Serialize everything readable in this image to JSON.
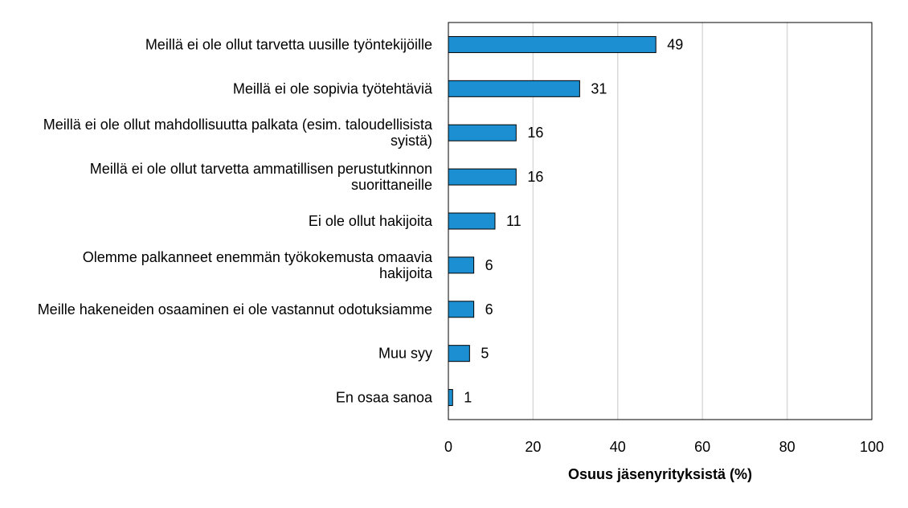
{
  "chart_data": {
    "type": "bar",
    "orientation": "horizontal",
    "categories": [
      "Meillä ei ole ollut tarvetta uusille työntekijöille",
      "Meillä ei ole sopivia työtehtäviä",
      "Meillä ei ole ollut mahdollisuutta palkata (esim. taloudellisista syistä)",
      "Meillä ei ole ollut tarvetta ammatillisen perustutkinnon suorittaneille",
      "Ei ole ollut hakijoita",
      "Olemme palkanneet enemmän työkokemusta omaavia hakijoita",
      "Meille hakeneiden osaaminen ei ole vastannut odotuksiamme",
      "Muu syy",
      "En osaa sanoa"
    ],
    "category_lines": [
      [
        "Meillä ei ole ollut tarvetta uusille työntekijöille"
      ],
      [
        "Meillä ei ole sopivia työtehtäviä"
      ],
      [
        "Meillä ei ole ollut mahdollisuutta palkata (esim. taloudellisista",
        "syistä)"
      ],
      [
        "Meillä ei ole ollut tarvetta ammatillisen perustutkinnon",
        "suorittaneille"
      ],
      [
        "Ei ole ollut hakijoita"
      ],
      [
        "Olemme palkanneet enemmän työkokemusta omaavia",
        "hakijoita"
      ],
      [
        "Meille hakeneiden osaaminen ei ole vastannut odotuksiamme"
      ],
      [
        "Muu syy"
      ],
      [
        "En osaa sanoa"
      ]
    ],
    "values": [
      49,
      31,
      16,
      16,
      11,
      6,
      6,
      5,
      1
    ],
    "value_labels": [
      "49",
      "31",
      "16",
      "16",
      "11",
      "6",
      "6",
      "5",
      "1"
    ],
    "xlabel": "Osuus jäsenyrityksistä (%)",
    "ylabel": "",
    "xlim": [
      0,
      100
    ],
    "xticks": [
      0,
      20,
      40,
      60,
      80,
      100
    ],
    "xtick_labels": [
      "0",
      "20",
      "40",
      "60",
      "80",
      "100"
    ],
    "grid": "vertical",
    "colors": {
      "bar": "#1b8fd2",
      "bar_outline": "#000000",
      "grid": "#d9d9d9"
    }
  }
}
